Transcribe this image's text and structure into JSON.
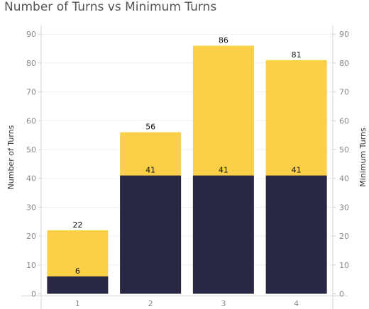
{
  "chart_data": {
    "type": "bar",
    "title": "Number of Turns vs Minimum Turns",
    "categories": [
      "1",
      "2",
      "3",
      "4"
    ],
    "series": [
      {
        "name": "Number of Turns",
        "values": [
          22,
          56,
          86,
          81
        ],
        "color": "#fccf49"
      },
      {
        "name": "Minimum Turns",
        "values": [
          6,
          41,
          41,
          41
        ],
        "color": "#282846"
      }
    ],
    "ylabel_left": "Number of Turns",
    "ylabel_right": "Minimum Turns",
    "ylim": [
      0,
      94
    ],
    "yticks": [
      0,
      10,
      20,
      30,
      40,
      50,
      60,
      70,
      80,
      90
    ],
    "grid": true,
    "overlay": true
  }
}
